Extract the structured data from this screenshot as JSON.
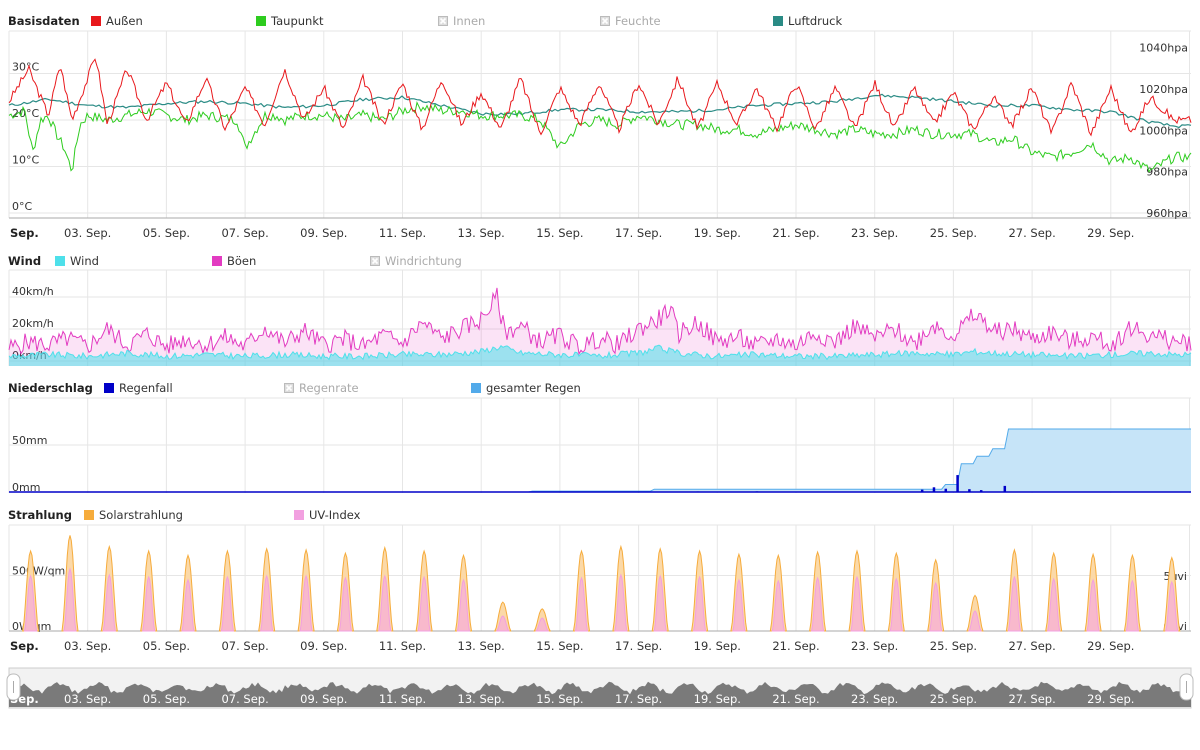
{
  "x_tick_labels": [
    "Sep.",
    "03. Sep.",
    "05. Sep.",
    "07. Sep.",
    "09. Sep.",
    "11. Sep.",
    "13. Sep.",
    "15. Sep.",
    "17. Sep.",
    "19. Sep.",
    "21. Sep.",
    "23. Sep.",
    "25. Sep.",
    "27. Sep.",
    "29. Sep."
  ],
  "colors": {
    "aussen": "#e8181c",
    "taupunkt": "#2ecc1f",
    "disabled": "#bbbbbb",
    "luftdruck": "#2a8b85",
    "wind": "#4ee0ea",
    "boeen": "#e23bc1",
    "regenfall": "#0000c8",
    "gesamter_regen": "#52aaea",
    "solar": "#f6ac3c",
    "uv": "#f2a0e0",
    "grid": "#e6e6e6",
    "navigator": "#7a7a7a"
  },
  "chart_data": [
    {
      "type": "line",
      "title": "Basisdaten",
      "x_range": [
        "2024-09-01",
        "2024-09-30"
      ],
      "ylim_left": [
        0,
        40
      ],
      "ylim_right": [
        960,
        1050
      ],
      "yticks_left": [
        0,
        10,
        20,
        30
      ],
      "yticks_left_labels": [
        "0°C",
        "10°C",
        "20°C",
        "30°C"
      ],
      "yticks_right": [
        960,
        980,
        1000,
        1020,
        1040
      ],
      "yticks_right_labels": [
        "960hpa",
        "980hpa",
        "1000hpa",
        "1020hpa",
        "1040hpa"
      ],
      "legend_position": "top",
      "grid": true,
      "series": [
        {
          "key": "aussen",
          "name": "Außen",
          "axis": "left",
          "enabled": true,
          "legend_icon": "square",
          "x": [
            1.0,
            1.5,
            2.0,
            2.3,
            2.6,
            3.0,
            3.2,
            3.5,
            4.0,
            4.5,
            5.0,
            5.5,
            6.0,
            6.5,
            7.0,
            7.5,
            8.0,
            8.5,
            9.0,
            9.5,
            10.0,
            10.5,
            11.0,
            11.5,
            12.0,
            12.5,
            13.0,
            13.5,
            14.0,
            14.5,
            15.0,
            15.5,
            16.0,
            16.5,
            17.0,
            17.5,
            18.0,
            18.5,
            19.0,
            19.5,
            20.0,
            20.5,
            21.0,
            21.5,
            22.0,
            22.5,
            23.0,
            23.5,
            24.0,
            24.5,
            25.0,
            25.5,
            26.0,
            26.5,
            27.0,
            27.5,
            28.0,
            28.5,
            29.0,
            29.5,
            30.0,
            30.6
          ],
          "y": [
            24,
            31,
            21,
            32,
            20,
            29,
            34,
            19,
            31,
            20,
            28,
            19,
            29,
            18,
            27,
            19,
            31,
            20,
            27,
            18,
            29,
            19,
            28,
            18,
            29,
            19,
            26,
            18,
            29,
            17,
            27,
            19,
            28,
            18,
            28,
            19,
            29,
            18,
            28,
            19,
            27,
            18,
            28,
            18,
            27,
            18,
            28,
            18,
            27,
            19,
            26,
            18,
            25,
            19,
            27,
            17,
            28,
            17,
            27,
            17,
            25,
            20
          ]
        },
        {
          "key": "taupunkt",
          "name": "Taupunkt",
          "axis": "left",
          "enabled": true,
          "legend_icon": "square",
          "x": [
            1.0,
            1.4,
            1.6,
            1.8,
            2.0,
            2.2,
            2.4,
            2.6,
            2.8,
            3.0,
            3.5,
            4.0,
            4.5,
            5.0,
            5.5,
            6.0,
            6.8,
            7.0,
            7.5,
            7.8,
            8.0,
            8.5,
            9.0,
            9.5,
            10.0,
            10.5,
            11.0,
            11.5,
            12.0,
            12.5,
            13.0,
            13.5,
            14.0,
            14.5,
            15.0,
            15.5,
            16.0,
            16.5,
            17.0,
            17.5,
            18.0,
            18.5,
            19.0,
            19.5,
            20.0,
            20.5,
            21.0,
            21.5,
            22.0,
            22.5,
            23.0,
            23.5,
            24.0,
            24.5,
            25.0,
            25.5,
            26.0,
            26.5,
            27.0,
            27.5,
            28.0,
            28.5,
            29.0,
            29.5,
            30.0,
            30.6
          ],
          "y": [
            21,
            22,
            13,
            20,
            21,
            17,
            14,
            9,
            19,
            21,
            20,
            21,
            22,
            21,
            20,
            21,
            20,
            14,
            21,
            21,
            20,
            21,
            21,
            20,
            21,
            20,
            22,
            23,
            22,
            22,
            21,
            21,
            21,
            20,
            14,
            19,
            20,
            19,
            21,
            20,
            19,
            19,
            18,
            18,
            17,
            18,
            19,
            18,
            17,
            18,
            17,
            17,
            18,
            17,
            17,
            17,
            15,
            16,
            13,
            12,
            13,
            15,
            11,
            12,
            9,
            12
          ]
        },
        {
          "key": "innen",
          "name": "Innen",
          "axis": "left",
          "enabled": false,
          "legend_icon": "cross",
          "x": [],
          "y": []
        },
        {
          "key": "feuchte",
          "name": "Feuchte",
          "axis": "left",
          "enabled": false,
          "legend_icon": "cross",
          "x": [],
          "y": []
        },
        {
          "key": "luftdruck",
          "name": "Luftdruck",
          "axis": "right",
          "enabled": true,
          "legend_icon": "square",
          "x": [
            1.0,
            2.0,
            3.0,
            4.0,
            5.0,
            6.0,
            7.0,
            8.0,
            9.0,
            10.0,
            11.0,
            12.0,
            13.0,
            14.0,
            15.0,
            16.0,
            17.0,
            18.0,
            19.0,
            20.0,
            21.0,
            22.0,
            23.0,
            24.0,
            25.0,
            26.0,
            27.0,
            28.0,
            29.0,
            30.0,
            30.6
          ],
          "y": [
            1012,
            1015,
            1012,
            1011,
            1013,
            1014,
            1013,
            1011,
            1012,
            1015,
            1016,
            1012,
            1008,
            1008,
            1010,
            1010,
            1009,
            1009,
            1010,
            1012,
            1013,
            1014,
            1017,
            1016,
            1014,
            1012,
            1012,
            1010,
            1009,
            1004,
            1002
          ]
        }
      ]
    },
    {
      "type": "area",
      "title": "Wind",
      "x_range": [
        "2024-09-01",
        "2024-09-30"
      ],
      "ylim": [
        0,
        50
      ],
      "yticks": [
        0,
        20,
        40
      ],
      "ytick_labels": [
        "0km/h",
        "20km/h",
        "40km/h"
      ],
      "legend_position": "top",
      "grid": true,
      "series": [
        {
          "key": "wind",
          "name": "Wind",
          "enabled": true,
          "legend_icon": "square",
          "x": [
            1.0,
            2.0,
            3.0,
            4.0,
            5.0,
            6.0,
            7.0,
            8.0,
            9.0,
            10.0,
            11.0,
            12.0,
            13.0,
            13.5,
            14.0,
            15.0,
            16.0,
            17.0,
            17.5,
            18.0,
            19.0,
            20.0,
            21.0,
            22.0,
            23.0,
            24.0,
            25.0,
            25.5,
            26.0,
            27.0,
            28.0,
            29.0,
            30.0,
            30.6
          ],
          "y": [
            3,
            4,
            3,
            5,
            3,
            4,
            3,
            4,
            3,
            3,
            4,
            4,
            6,
            9,
            5,
            4,
            3,
            5,
            8,
            5,
            3,
            4,
            3,
            3,
            4,
            5,
            4,
            6,
            5,
            4,
            3,
            4,
            5,
            4
          ]
        },
        {
          "key": "boeen",
          "name": "Böen",
          "enabled": true,
          "legend_icon": "square",
          "x": [
            1.0,
            1.5,
            2.0,
            2.5,
            3.0,
            3.5,
            4.0,
            4.5,
            5.0,
            5.5,
            6.0,
            6.5,
            7.0,
            7.5,
            8.0,
            8.5,
            9.0,
            9.5,
            10.0,
            10.5,
            11.0,
            11.5,
            12.0,
            12.5,
            13.0,
            13.4,
            13.6,
            14.0,
            14.5,
            15.0,
            15.5,
            16.0,
            16.5,
            17.0,
            17.5,
            17.8,
            18.0,
            18.5,
            19.0,
            19.5,
            20.0,
            20.5,
            21.0,
            21.5,
            22.0,
            22.5,
            23.0,
            23.5,
            24.0,
            24.5,
            25.0,
            25.5,
            25.8,
            26.0,
            26.5,
            27.0,
            27.5,
            28.0,
            28.5,
            29.0,
            29.5,
            30.0,
            30.6
          ],
          "y": [
            8,
            12,
            10,
            14,
            9,
            20,
            10,
            17,
            9,
            14,
            10,
            15,
            9,
            21,
            11,
            19,
            10,
            14,
            9,
            16,
            11,
            24,
            14,
            20,
            26,
            40,
            18,
            22,
            12,
            16,
            9,
            14,
            10,
            20,
            26,
            33,
            17,
            24,
            12,
            15,
            9,
            14,
            10,
            18,
            12,
            22,
            14,
            20,
            11,
            23,
            16,
            28,
            25,
            18,
            20,
            14,
            18,
            12,
            15,
            10,
            21,
            16,
            12
          ]
        },
        {
          "key": "windrichtung",
          "name": "Windrichtung",
          "enabled": false,
          "legend_icon": "cross",
          "x": [],
          "y": []
        }
      ]
    },
    {
      "type": "area",
      "title": "Niederschlag",
      "x_range": [
        "2024-09-01",
        "2024-09-30"
      ],
      "ylim": [
        0,
        100
      ],
      "yticks": [
        0,
        50
      ],
      "ytick_labels": [
        "0mm",
        "50mm"
      ],
      "legend_position": "top",
      "grid": true,
      "series": [
        {
          "key": "regenfall",
          "name": "Regenfall",
          "enabled": true,
          "legend_icon": "square",
          "x": [
            14.3,
            15.5,
            17.0,
            18.5,
            20.0,
            21.5,
            23.0,
            24.2,
            24.5,
            24.8,
            25.1,
            25.4,
            25.7,
            26.3
          ],
          "y": [
            0.3,
            0.4,
            0.5,
            0.6,
            0.7,
            0.5,
            0.5,
            2.5,
            5.0,
            3.5,
            18.0,
            3.0,
            2.0,
            6.5
          ]
        },
        {
          "key": "regenrate",
          "name": "Regenrate",
          "enabled": false,
          "legend_icon": "cross",
          "x": [],
          "y": []
        },
        {
          "key": "gesamter_regen",
          "name": "gesamter Regen",
          "enabled": true,
          "legend_icon": "square",
          "x": [
            1.0,
            14.2,
            14.3,
            17.3,
            17.4,
            24.7,
            24.8,
            25.1,
            25.2,
            25.5,
            25.6,
            25.9,
            26.0,
            26.3,
            26.4,
            30.6
          ],
          "y": [
            0,
            0,
            1,
            1,
            3,
            3,
            8,
            8,
            30,
            30,
            38,
            38,
            46,
            46,
            67,
            67
          ]
        }
      ]
    },
    {
      "type": "area",
      "title": "Strahlung",
      "x_range": [
        "2024-09-01",
        "2024-09-30"
      ],
      "ylim_left": [
        0,
        900
      ],
      "ylim_right": [
        0,
        10
      ],
      "yticks_left": [
        0,
        500
      ],
      "yticks_left_labels": [
        "0W/qm",
        "500W/qm"
      ],
      "yticks_right": [
        0,
        5
      ],
      "yticks_right_labels": [
        "0uvi",
        "5uvi"
      ],
      "legend_position": "top",
      "grid": true,
      "series": [
        {
          "key": "solarstrahlung",
          "name": "Solarstrahlung",
          "axis": "left",
          "enabled": true,
          "legend_icon": "square",
          "x": [
            1.55,
            2.55,
            3.55,
            4.55,
            5.55,
            6.55,
            7.55,
            8.55,
            9.55,
            10.55,
            11.55,
            12.55,
            13.55,
            14.55,
            15.55,
            16.55,
            17.55,
            18.55,
            19.55,
            20.55,
            21.55,
            22.55,
            23.55,
            24.55,
            25.55,
            26.55,
            27.55,
            28.55,
            29.55,
            30.55
          ],
          "y": [
            720,
            860,
            760,
            720,
            680,
            720,
            740,
            730,
            700,
            750,
            720,
            680,
            260,
            200,
            720,
            760,
            740,
            720,
            690,
            680,
            710,
            720,
            700,
            640,
            320,
            730,
            700,
            690,
            680,
            660
          ]
        },
        {
          "key": "uv_index",
          "name": "UV-Index",
          "axis": "right",
          "enabled": true,
          "legend_icon": "square",
          "x": [
            1.55,
            2.55,
            3.55,
            4.55,
            5.55,
            6.55,
            7.55,
            8.55,
            9.55,
            10.55,
            11.55,
            12.55,
            13.55,
            14.55,
            15.55,
            16.55,
            17.55,
            18.55,
            19.55,
            20.55,
            21.55,
            22.55,
            23.55,
            24.55,
            25.55,
            26.55,
            27.55,
            28.55,
            29.55,
            30.55
          ],
          "y": [
            5.5,
            6.2,
            5.6,
            5.4,
            5.1,
            5.4,
            5.5,
            5.5,
            5.3,
            5.5,
            5.4,
            5.1,
            1.5,
            1.3,
            5.3,
            5.6,
            5.5,
            5.4,
            5.1,
            5.0,
            5.3,
            5.4,
            5.2,
            4.8,
            2.0,
            5.4,
            5.2,
            5.1,
            5.0,
            4.9
          ]
        }
      ]
    }
  ]
}
